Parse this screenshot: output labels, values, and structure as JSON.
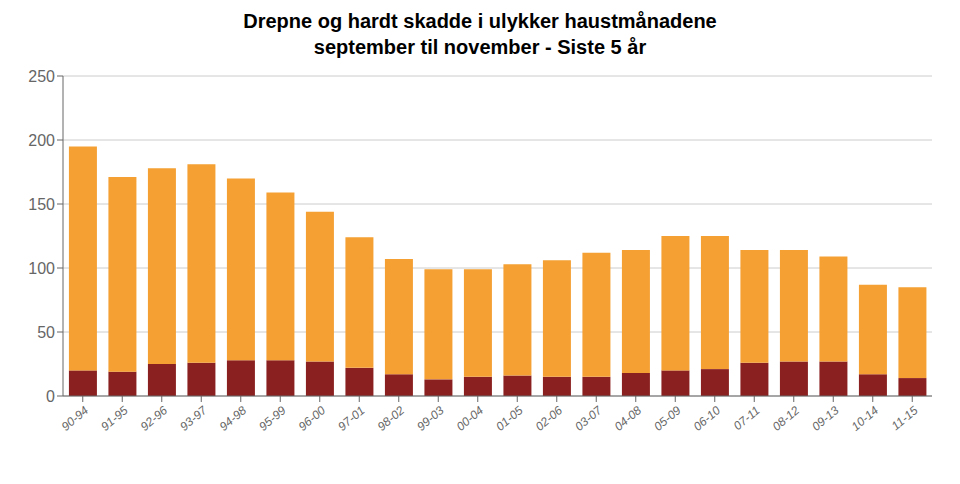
{
  "chart_data": {
    "type": "bar",
    "title": "Drepne og hardt skadde i ulykker haustmånadene\nseptember til november - Siste 5 år",
    "categories": [
      "90-94",
      "91-95",
      "92-96",
      "93-97",
      "94-98",
      "95-99",
      "96-00",
      "97-01",
      "98-02",
      "99-03",
      "00-04",
      "01-05",
      "02-06",
      "03-07",
      "04-08",
      "05-09",
      "06-10",
      "07-11",
      "08-12",
      "09-13",
      "10-14",
      "11-15"
    ],
    "series": [
      {
        "color": "#8B2020",
        "values": [
          20,
          19,
          25,
          26,
          28,
          28,
          27,
          22,
          17,
          13,
          15,
          16,
          15,
          15,
          18,
          20,
          21,
          26,
          27,
          27,
          17,
          14
        ]
      },
      {
        "color": "#F5A033",
        "values": [
          175,
          152,
          153,
          155,
          142,
          131,
          117,
          102,
          90,
          86,
          84,
          87,
          91,
          97,
          96,
          105,
          104,
          88,
          87,
          82,
          70,
          71
        ]
      }
    ],
    "stacked": true,
    "ylim": [
      0,
      250
    ],
    "yticks": [
      0,
      50,
      100,
      150,
      200,
      250
    ],
    "grid": true
  }
}
